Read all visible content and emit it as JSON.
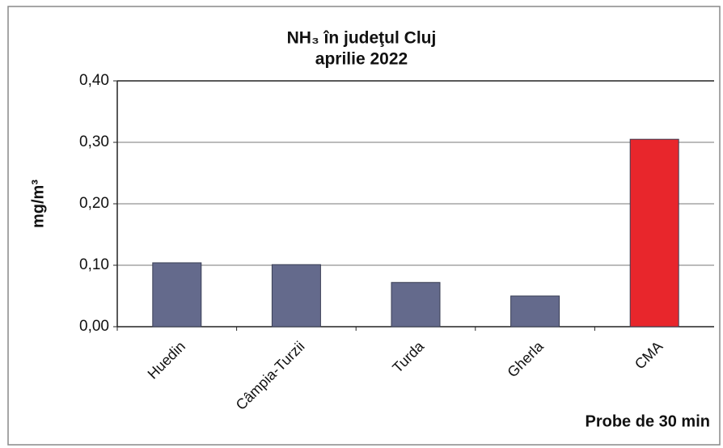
{
  "chart_data": {
    "type": "bar",
    "title": [
      "NH₃ în judeţul Cluj",
      "aprilie 2022"
    ],
    "y_label": "mg/m³",
    "x_label": "Probe de 30 min",
    "categories": [
      "Huedin",
      "Câmpia-Turzii",
      "Turda",
      "Gherla",
      "CMA"
    ],
    "values": [
      0.104,
      0.101,
      0.072,
      0.05,
      0.305
    ],
    "colors": [
      "#646a8c",
      "#646a8c",
      "#646a8c",
      "#646a8c",
      "#e8262c"
    ],
    "ylim": [
      0,
      0.4
    ],
    "yticks": [
      {
        "value": 0,
        "label": "0,00"
      },
      {
        "value": 0.1,
        "label": "0,10"
      },
      {
        "value": 0.2,
        "label": "0,20"
      },
      {
        "value": 0.3,
        "label": "0,30"
      },
      {
        "value": 0.4,
        "label": "0,40"
      }
    ],
    "grid": true
  }
}
